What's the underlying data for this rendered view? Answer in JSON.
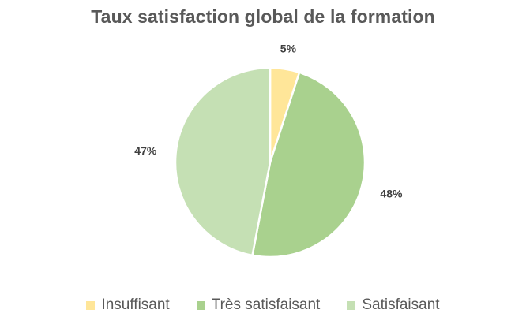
{
  "chart_data": {
    "type": "pie",
    "title": "Taux satisfaction global de la formation",
    "categories": [
      "Insuffisant",
      "Très satisfaisant",
      "Satisfaisant"
    ],
    "values": [
      5,
      48,
      47
    ],
    "labels": [
      "5%",
      "48%",
      "47%"
    ],
    "colors": [
      "#FFE699",
      "#A9D18E",
      "#C5E0B4"
    ],
    "legend_position": "bottom",
    "start_angle": "top, clockwise"
  }
}
